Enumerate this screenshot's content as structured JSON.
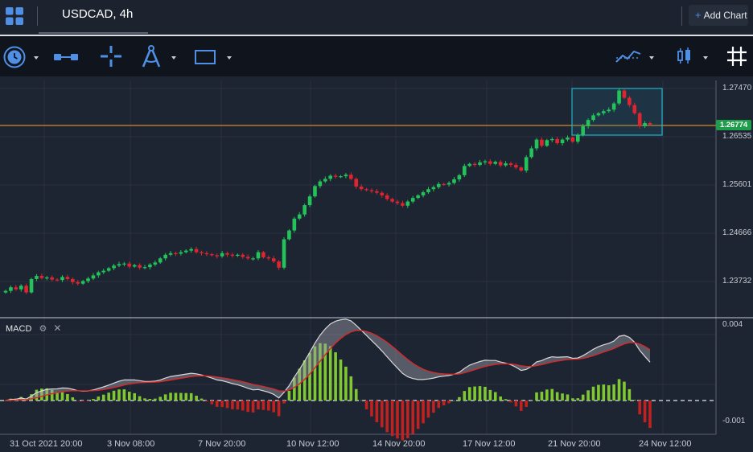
{
  "header": {
    "symbol": "USDCAD, 4h",
    "add_chart": "Add Chart"
  },
  "toolbar": {
    "tools": [
      {
        "icon": "clock-icon"
      },
      {
        "icon": "horizontal-line-icon"
      },
      {
        "icon": "crosshair-icon"
      },
      {
        "icon": "compass-icon"
      },
      {
        "icon": "rectangle-icon"
      },
      {
        "icon": "indicators-icon"
      },
      {
        "icon": "candle-type-icon"
      },
      {
        "icon": "grid-icon"
      }
    ]
  },
  "price_axis": [
    "1.27470",
    "1.26535",
    "1.25601",
    "1.24666",
    "1.23732"
  ],
  "current_price": "1.26774",
  "macd_axis": [
    "0.004",
    "-0.001"
  ],
  "indicator": {
    "name": "MACD"
  },
  "date_axis": [
    "31 Oct 2021 20:00",
    "3 Nov 08:00",
    "7 Nov 20:00",
    "10 Nov 12:00",
    "14 Nov 20:00",
    "17 Nov 12:00",
    "21 Nov 20:00",
    "24 Nov 12:00"
  ],
  "colors": {
    "up": "#22c45a",
    "down": "#e0252f",
    "accent": "#4f8fe6",
    "price_line": "#b47a2a",
    "selection": "#1fb5c8"
  },
  "chart_data": {
    "type": "candlestick",
    "instrument": "USDCAD",
    "timeframe": "4h",
    "ylim": [
      1.2335,
      1.2762
    ],
    "current_price": 1.26774,
    "closes": [
      1.2355,
      1.2362,
      1.2358,
      1.2365,
      1.2352,
      1.2378,
      1.2384,
      1.238,
      1.2381,
      1.2377,
      1.2376,
      1.2382,
      1.2378,
      1.2372,
      1.2369,
      1.2374,
      1.2379,
      1.2385,
      1.2391,
      1.2394,
      1.2399,
      1.2404,
      1.2407,
      1.2408,
      1.2402,
      1.2405,
      1.24,
      1.2401,
      1.2406,
      1.241,
      1.2418,
      1.2425,
      1.2428,
      1.2427,
      1.243,
      1.2433,
      1.2436,
      1.243,
      1.2428,
      1.2426,
      1.2424,
      1.2422,
      1.2428,
      1.2425,
      1.2423,
      1.2425,
      1.2421,
      1.2418,
      1.2418,
      1.243,
      1.242,
      1.2418,
      1.2412,
      1.24,
      1.2455,
      1.2472,
      1.2495,
      1.2503,
      1.2521,
      1.2538,
      1.2558,
      1.2567,
      1.2572,
      1.2578,
      1.2576,
      1.2577,
      1.258,
      1.2572,
      1.2557,
      1.2552,
      1.255,
      1.2548,
      1.2545,
      1.254,
      1.2533,
      1.2528,
      1.2525,
      1.252,
      1.2528,
      1.2535,
      1.254,
      1.2546,
      1.2552,
      1.2556,
      1.2562,
      1.2561,
      1.2564,
      1.2571,
      1.2579,
      1.2597,
      1.2601,
      1.2599,
      1.2604,
      1.2606,
      1.2601,
      1.2605,
      1.2598,
      1.2602,
      1.2599,
      1.2594,
      1.2588,
      1.2614,
      1.2631,
      1.2648,
      1.2636,
      1.2647,
      1.2649,
      1.2641,
      1.2648,
      1.2652,
      1.2644,
      1.2657,
      1.2674,
      1.2686,
      1.2695,
      1.2699,
      1.2703,
      1.2706,
      1.2718,
      1.2743,
      1.2729,
      1.2715,
      1.2699,
      1.2674,
      1.268,
      1.2677
    ]
  }
}
